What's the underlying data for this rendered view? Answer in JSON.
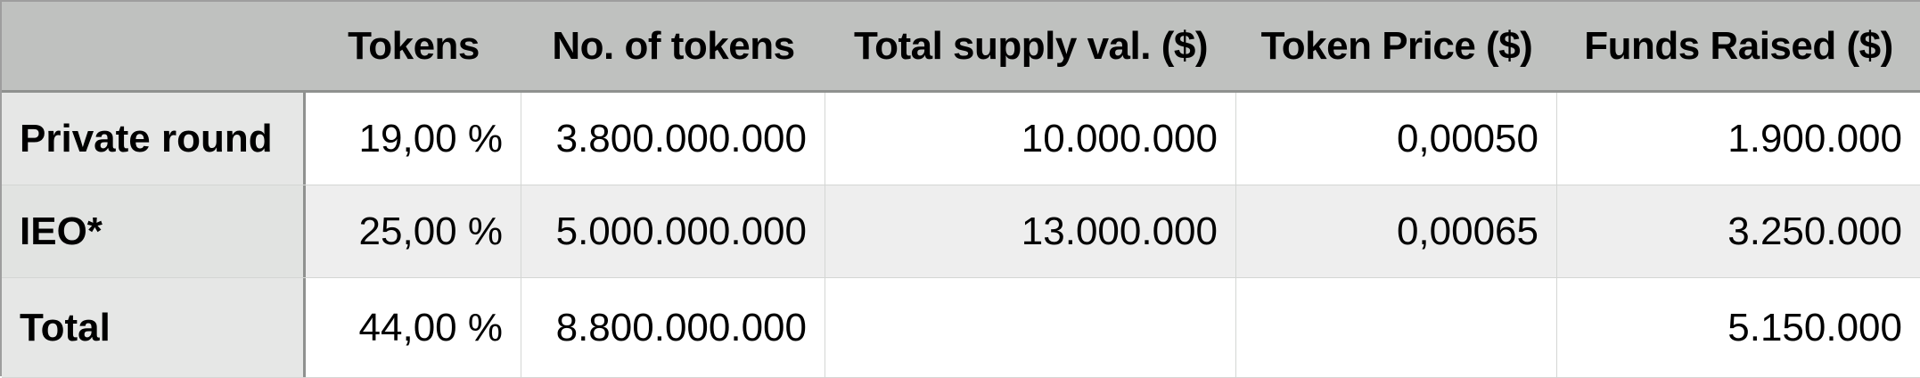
{
  "table": {
    "headers": [
      "",
      "Tokens",
      "No. of tokens",
      "Total supply val. ($)",
      "Token Price ($)",
      "Funds Raised ($)"
    ],
    "rows": [
      {
        "label": "Private round",
        "cells": [
          "19,00 %",
          "3.800.000.000",
          "10.000.000",
          "0,00050",
          "1.900.000"
        ]
      },
      {
        "label": "IEO*",
        "cells": [
          "25,00 %",
          "5.000.000.000",
          "13.000.000",
          "0,00065",
          "3.250.000"
        ]
      },
      {
        "label": "Total",
        "cells": [
          "44,00 %",
          "8.800.000.000",
          "",
          "",
          "5.150.000"
        ]
      }
    ]
  }
}
